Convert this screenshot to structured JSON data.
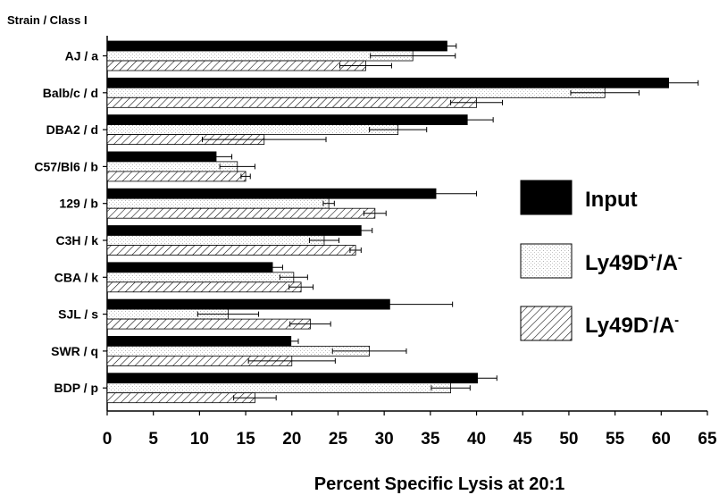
{
  "chart_data": {
    "type": "bar",
    "orientation": "horizontal",
    "category_header": "Strain / Class I",
    "xlabel": "Percent Specific Lysis at 20:1",
    "ylabel": "",
    "xlim": [
      0,
      65
    ],
    "x_ticks": [
      "0",
      "5",
      "10",
      "15",
      "20",
      "25",
      "30",
      "35",
      "40",
      "45",
      "50",
      "55",
      "60",
      "65"
    ],
    "categories": [
      "AJ / a",
      "Balb/c / d",
      "DBA2 / d",
      "C57/Bl6 / b",
      "129 / b",
      "C3H / k",
      "CBA / k",
      "SJL / s",
      "SWR / q",
      "BDP / p"
    ],
    "series": [
      {
        "name": "Input",
        "pattern": "solid",
        "values": [
          36.8,
          60.8,
          39.0,
          11.8,
          35.6,
          27.5,
          17.9,
          30.6,
          19.9,
          40.1
        ],
        "errors": [
          1.0,
          3.2,
          2.8,
          1.7,
          4.4,
          1.2,
          1.1,
          6.8,
          0.8,
          2.1
        ]
      },
      {
        "name": "Ly49D+/A-",
        "name_base": "Ly49D",
        "name_sup": "+",
        "name_suffix": "/A",
        "name_sup2": "-",
        "pattern": "stipple",
        "values": [
          33.1,
          53.9,
          31.5,
          14.1,
          24.0,
          23.5,
          20.2,
          13.1,
          28.4,
          37.2
        ],
        "errors": [
          4.6,
          3.7,
          3.1,
          1.9,
          0.6,
          1.6,
          1.5,
          3.3,
          4.0,
          2.1
        ]
      },
      {
        "name": "Ly49D-/A-",
        "name_base": "Ly49D",
        "name_sup": "-",
        "name_suffix": "/A",
        "name_sup2": "-",
        "pattern": "hatch",
        "values": [
          28.0,
          40.0,
          17.0,
          15.0,
          29.0,
          26.9,
          21.0,
          22.0,
          20.0,
          16.0
        ],
        "errors": [
          2.8,
          2.8,
          6.7,
          0.5,
          1.2,
          0.6,
          1.3,
          2.2,
          4.7,
          2.3
        ]
      }
    ],
    "legend_position": "right",
    "grid": false
  }
}
